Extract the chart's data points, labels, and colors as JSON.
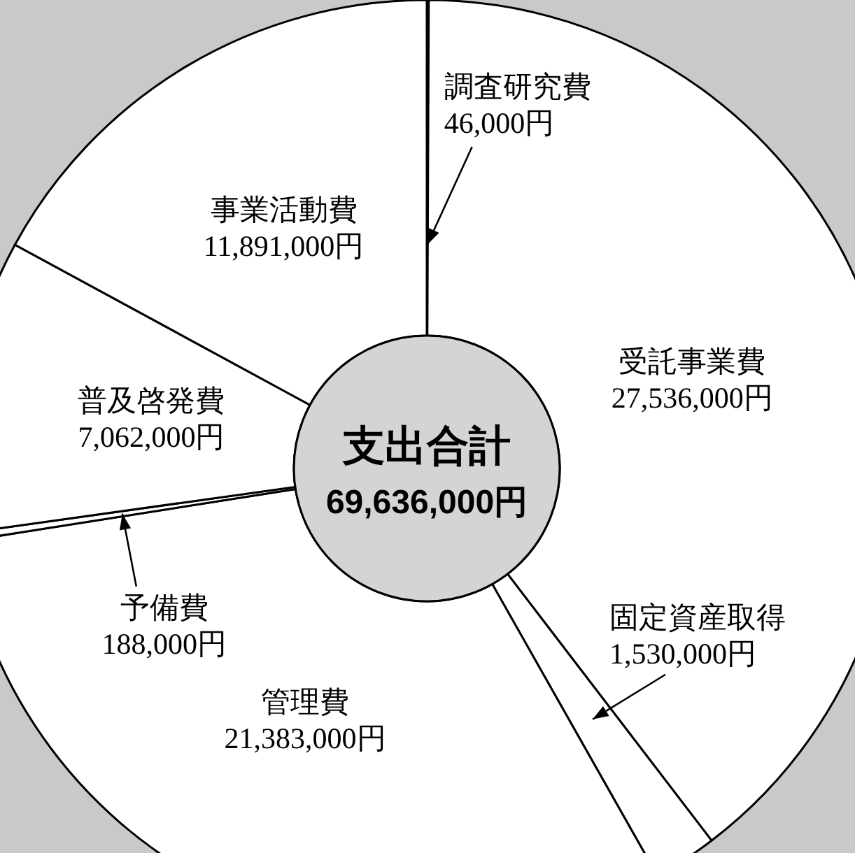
{
  "chart_data": {
    "type": "donut",
    "title": "支出合計",
    "annotations": [
      "69,636,000円"
    ],
    "categories": [
      "調査研究費",
      "受託事業費",
      "固定資産取得",
      "管理費",
      "予備費",
      "普及啓発費",
      "事業活動費"
    ],
    "values": [
      46000,
      27536000,
      1530000,
      21383000,
      188000,
      7062000,
      11891000
    ],
    "colors": [
      "#ffffff",
      "#ffffff",
      "#ffffff",
      "#ffffff",
      "#ffffff",
      "#ffffff",
      "#ffffff"
    ],
    "value_labels": [
      "46,000円",
      "27,536,000円",
      "1,530,000円",
      "21,383,000円",
      "188,000円",
      "7,062,000円",
      "11,891,000円"
    ]
  }
}
